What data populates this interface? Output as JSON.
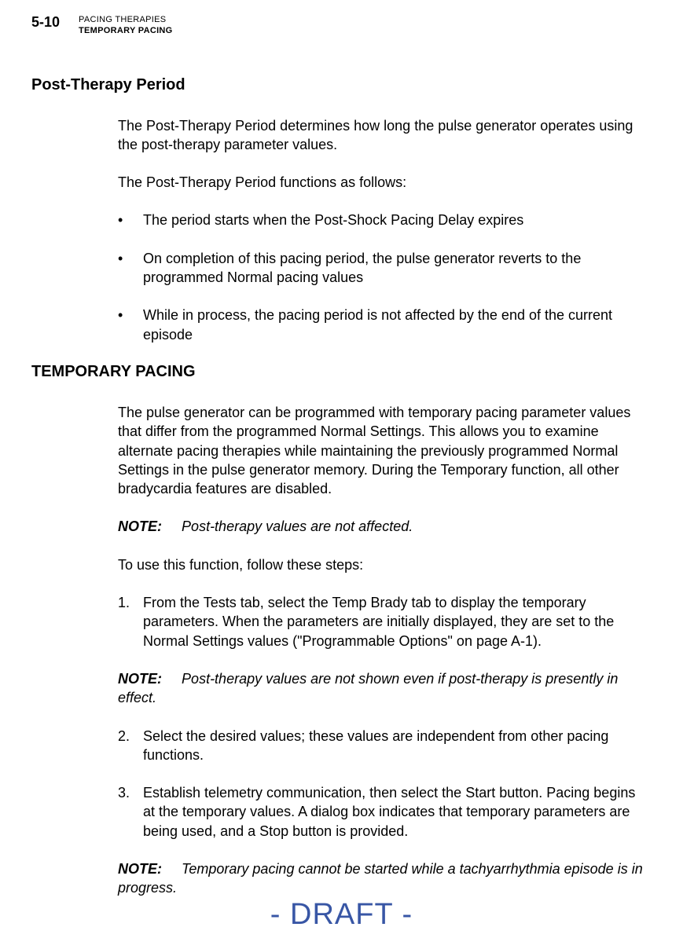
{
  "header": {
    "page_number": "5-10",
    "line1": "PACING THERAPIES",
    "line2": "TEMPORARY PACING"
  },
  "sections": {
    "post_therapy": {
      "heading": "Post-Therapy Period",
      "intro": "The Post-Therapy Period determines how long the pulse generator operates using the post-therapy parameter values.",
      "functions_intro": "The Post-Therapy Period functions as follows:",
      "bullets": [
        "The period starts when the Post-Shock Pacing Delay expires",
        "On completion of this pacing period, the pulse generator reverts to the programmed Normal pacing values",
        "While in process, the pacing period is not affected by the end of the current episode"
      ]
    },
    "temporary_pacing": {
      "heading": "TEMPORARY PACING",
      "intro": "The pulse generator can be programmed with temporary pacing parameter values that differ from the programmed Normal Settings.  This allows you to examine alternate pacing therapies while maintaining the previously programmed Normal Settings in the pulse generator memory.  During the Temporary function, all other bradycardia features are disabled.",
      "note1_label": "NOTE:",
      "note1_text": "Post-therapy values are not affected.",
      "steps_intro": "To use this function, follow these steps:",
      "step1_num": "1.",
      "step1_text": "From the Tests tab, select the Temp Brady tab to display the temporary parameters.  When the parameters are initially displayed, they are set to the Normal Settings values (\"Programmable Options\" on page A-1).",
      "note2_label": "NOTE:",
      "note2_text": "Post-therapy values are not shown even if post-therapy is presently in effect.",
      "step2_num": "2.",
      "step2_text": "Select the desired values; these values are independent from other pacing functions.",
      "step3_num": "3.",
      "step3_text": "Establish telemetry communication, then select the Start button.  Pacing begins at the temporary values.  A dialog box indicates that temporary parameters are being used, and a Stop button is provided.",
      "note3_label": "NOTE:",
      "note3_text": "Temporary pacing cannot be started while a tachyarrhythmia episode is in progress."
    }
  },
  "watermark": "- DRAFT -",
  "colors": {
    "text": "#000000",
    "background": "#ffffff",
    "watermark": "#3856a5"
  }
}
